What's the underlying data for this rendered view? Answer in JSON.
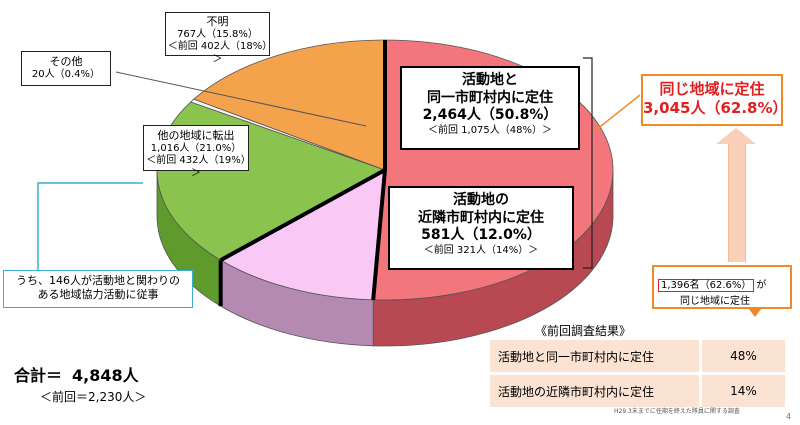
{
  "chart_data": {
    "type": "pie",
    "total": 4848,
    "slices": [
      {
        "key": "same",
        "name": "活動地と\n同一市町村内に定住",
        "value": 2464,
        "percent": 50.8,
        "color": "#f2767b",
        "side": "#b84852"
      },
      {
        "key": "neighbor",
        "name": "活動地の\n近隣市町村内に定住",
        "value": 581,
        "percent": 12.0,
        "color": "#f9c8f5",
        "side": "#b48ab2"
      },
      {
        "key": "other_region",
        "name": "他の地域に転出",
        "value": 1016,
        "percent": 21.0,
        "color": "#8ac44e",
        "side": "#5f9a2d"
      },
      {
        "key": "other",
        "name": "その他",
        "value": 20,
        "percent": 0.4,
        "color": "#f4f4f4",
        "side": "#bdbdbd"
      },
      {
        "key": "unknown",
        "name": "不明",
        "value": 767,
        "percent": 15.8,
        "color": "#f4a24c",
        "side": "#c3782c"
      }
    ]
  },
  "labels": {
    "unknown": {
      "title": "不明",
      "value": "767人（15.8%）",
      "prev": "＜前回 402人（18%）＞"
    },
    "other": {
      "title": "その他",
      "value": "20人（0.4%）"
    },
    "other_region": {
      "title": "他の地域に転出",
      "value": "1,016人（21.0%）",
      "prev": "＜前回 432人（19%）＞"
    },
    "same": {
      "line1": "活動地と",
      "line2": "同一市町村内に定住",
      "value": "2,464人（50.8%）",
      "prev": "＜前回 1,075人（48%）＞"
    },
    "neighbor": {
      "line1": "活動地の",
      "line2": "近隣市町村内に定住",
      "value": "581人（12.0%）",
      "prev": "＜前回 321人（14%）＞"
    }
  },
  "same_region": {
    "title": "同じ地域に定住",
    "value": "3,045人（62.8%）"
  },
  "member_note": {
    "count": "1,396名（62.6%）",
    "suffix": "が",
    "line2": "同じ地域に定住"
  },
  "cooperation_note": {
    "line1": "うち、146人が活動地と関わりの",
    "line2": "ある地域協力活動に従事"
  },
  "total": {
    "label": "合計＝",
    "value": "4,848人",
    "prev": "＜前回＝2,230人＞"
  },
  "previous_results": {
    "title": "《前回調査結果》",
    "rows": [
      {
        "label": "活動地と同一市町村内に定住",
        "value": "48%"
      },
      {
        "label": "活動地の近隣市町村内に定住",
        "value": "14%"
      }
    ]
  },
  "source": "H29.3末までに任期を終えた隊員に関する調査",
  "page_number": "4"
}
